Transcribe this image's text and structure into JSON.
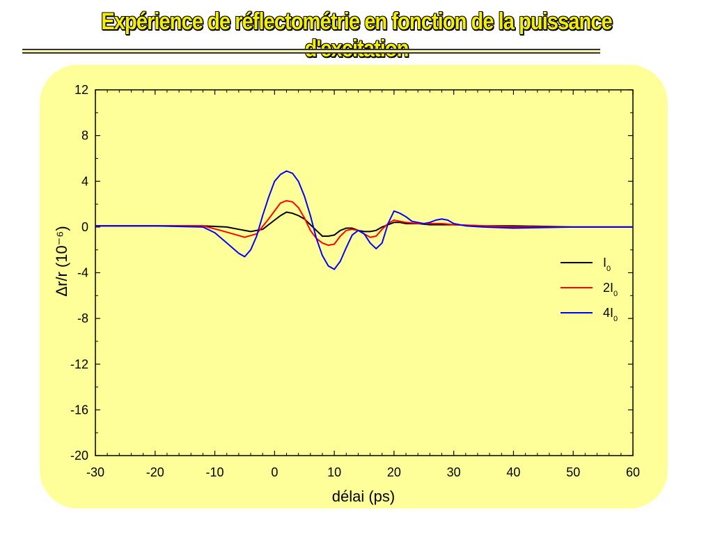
{
  "slide": {
    "title": "Expérience de réflectométrie en fonction de la puissance d'excitation"
  },
  "colors": {
    "panel_background": "#ffff99",
    "I0": "#000000",
    "2I0": "#ff0000",
    "4I0": "#0000ff"
  },
  "chart_data": {
    "type": "line",
    "xlabel": "délai (ps)",
    "ylabel": "Δr/r (10⁻⁶)",
    "xlim": [
      -30,
      60
    ],
    "ylim": [
      -20,
      12
    ],
    "xticks": [
      -30,
      -20,
      -10,
      0,
      10,
      20,
      30,
      40,
      50,
      60
    ],
    "yticks": [
      -20,
      -16,
      -12,
      -8,
      -4,
      0,
      4,
      8,
      12
    ],
    "grid": false,
    "legend_position": "right",
    "series": [
      {
        "name": "I0",
        "label_main": "I",
        "label_sub": "0",
        "color": "#000000",
        "x": [
          -30,
          -20,
          -12,
          -8,
          -6,
          -4,
          -2,
          0,
          1,
          2,
          3,
          4,
          5,
          6,
          7,
          8,
          9,
          10,
          11,
          12,
          13,
          14,
          15,
          16,
          17,
          18,
          19,
          20,
          21,
          22,
          24,
          26,
          28,
          30,
          35,
          40,
          50,
          60
        ],
        "y": [
          0.1,
          0.1,
          0.1,
          0,
          -0.2,
          -0.4,
          -0.2,
          0.6,
          1.0,
          1.3,
          1.2,
          1.0,
          0.7,
          0.2,
          -0.3,
          -0.8,
          -0.8,
          -0.7,
          -0.3,
          -0.1,
          -0.1,
          -0.3,
          -0.4,
          -0.4,
          -0.3,
          0,
          0.2,
          0.4,
          0.4,
          0.3,
          0.3,
          0.2,
          0.2,
          0.2,
          0.1,
          0.1,
          0,
          0
        ]
      },
      {
        "name": "2I0",
        "label_main": "2I",
        "label_sub": "0",
        "color": "#ff0000",
        "x": [
          -30,
          -20,
          -12,
          -9,
          -7,
          -5,
          -3,
          -1,
          0,
          1,
          2,
          3,
          4,
          5,
          6,
          7,
          8,
          9,
          10,
          11,
          12,
          13,
          14,
          15,
          16,
          17,
          18,
          19,
          20,
          21,
          22,
          24,
          26,
          28,
          30,
          35,
          40,
          50,
          60
        ],
        "y": [
          0.1,
          0.1,
          0.1,
          -0.3,
          -0.6,
          -0.9,
          -0.6,
          0.7,
          1.4,
          2.1,
          2.3,
          2.2,
          1.7,
          0.8,
          -0.3,
          -1.0,
          -1.4,
          -1.6,
          -1.5,
          -0.8,
          -0.3,
          -0.2,
          -0.3,
          -0.6,
          -0.9,
          -0.8,
          -0.2,
          0.3,
          0.6,
          0.5,
          0.4,
          0.3,
          0.3,
          0.3,
          0.2,
          0.1,
          0,
          0,
          0
        ]
      },
      {
        "name": "4I0",
        "label_main": "4I",
        "label_sub": "0",
        "color": "#0000ff",
        "x": [
          -30,
          -20,
          -12,
          -10,
          -8,
          -6,
          -5,
          -4,
          -3,
          -2,
          -1,
          0,
          1,
          2,
          3,
          4,
          5,
          6,
          7,
          8,
          9,
          10,
          11,
          12,
          13,
          14,
          15,
          16,
          17,
          18,
          19,
          20,
          21,
          22,
          23,
          24,
          25,
          26,
          27,
          28,
          29,
          30,
          32,
          35,
          40,
          50,
          60
        ],
        "y": [
          0.1,
          0.1,
          0,
          -0.5,
          -1.4,
          -2.3,
          -2.6,
          -2.0,
          -0.8,
          1.0,
          2.6,
          4.0,
          4.6,
          4.9,
          4.7,
          4.0,
          2.7,
          1.0,
          -1.0,
          -2.5,
          -3.4,
          -3.7,
          -3.0,
          -1.8,
          -0.7,
          -0.3,
          -0.6,
          -1.4,
          -1.9,
          -1.4,
          0.3,
          1.4,
          1.2,
          0.9,
          0.5,
          0.4,
          0.3,
          0.4,
          0.6,
          0.7,
          0.6,
          0.3,
          0.1,
          0,
          -0.1,
          0,
          0
        ]
      }
    ]
  }
}
